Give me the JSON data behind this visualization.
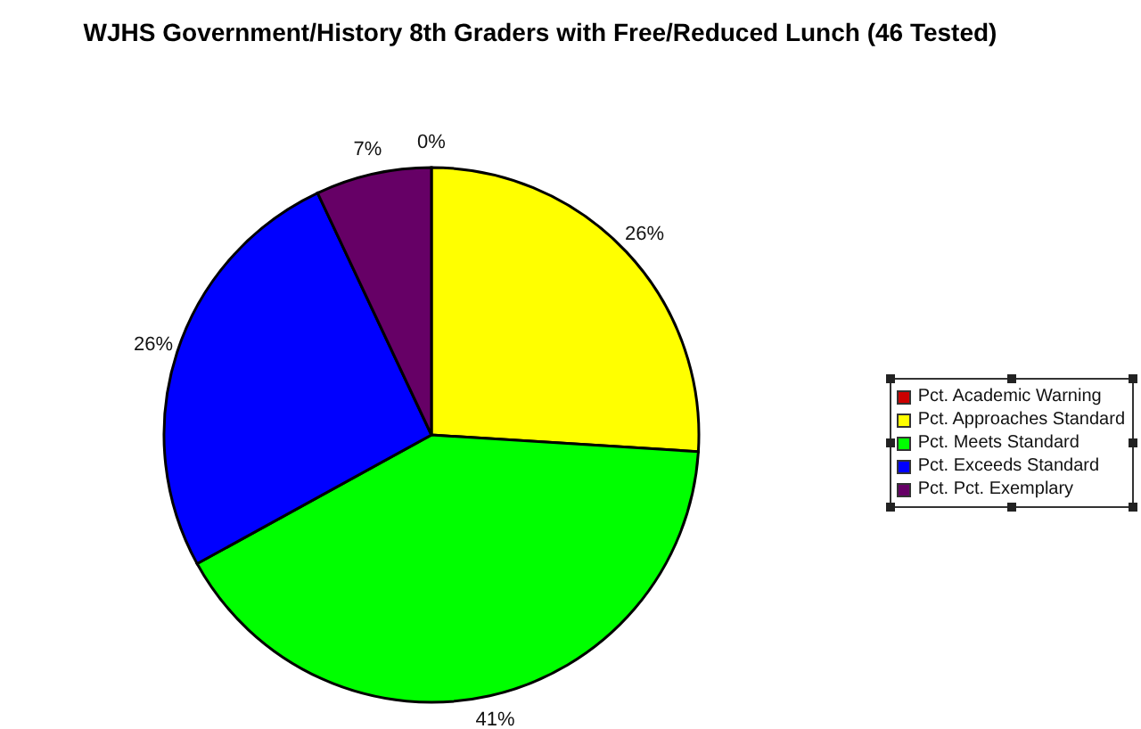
{
  "chart_data": {
    "type": "pie",
    "title": "WJHS Government/History 8th Graders with Free/Reduced Lunch (46 Tested)",
    "categories": [
      "Pct. Academic Warning",
      "Pct. Approaches Standard",
      "Pct. Meets Standard",
      "Pct. Exceeds Standard",
      "Pct. Pct. Exemplary"
    ],
    "values": [
      0,
      26,
      41,
      26,
      7
    ],
    "colors": [
      "#cc0000",
      "#ffff00",
      "#00ff00",
      "#0000ff",
      "#660066"
    ],
    "value_labels": [
      "0%",
      "26%",
      "41%",
      "26%",
      "7%"
    ],
    "legend": "right"
  }
}
